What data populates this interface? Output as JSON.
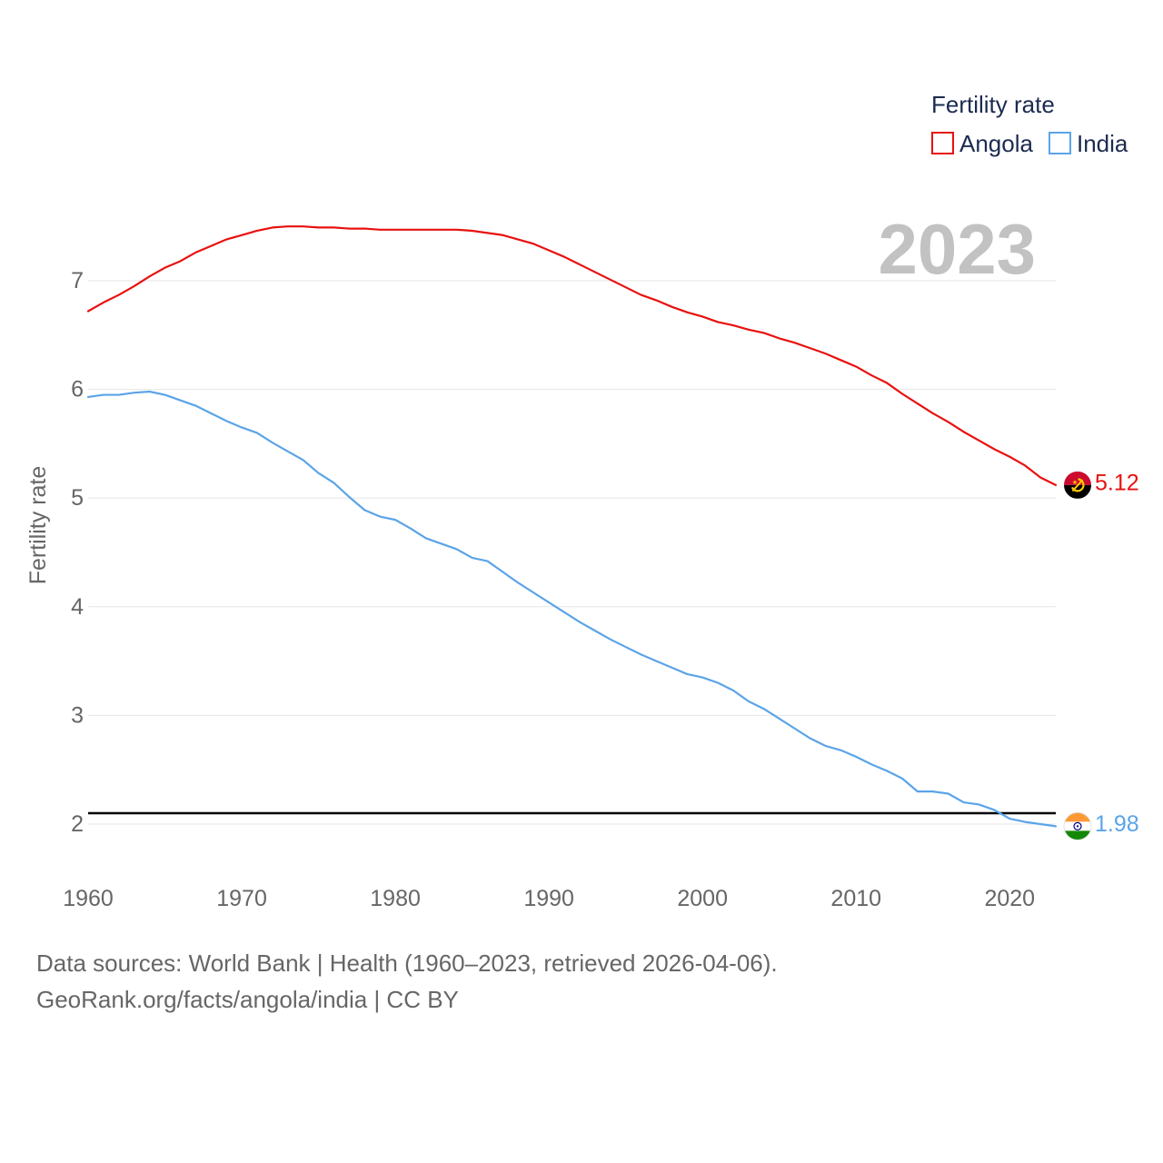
{
  "chart_data": {
    "type": "line",
    "title": "",
    "legend_title": "Fertility rate",
    "legend_position": "top-right",
    "ylabel": "Fertility rate",
    "xlabel": "",
    "year_label": "2023",
    "grid": true,
    "xlim": [
      1960,
      2023
    ],
    "ylim": [
      1.5,
      8
    ],
    "x_ticks": [
      1960,
      1970,
      1980,
      1990,
      2000,
      2010,
      2020
    ],
    "y_ticks": [
      2,
      3,
      4,
      5,
      6,
      7
    ],
    "reference_line": 2.1,
    "x": [
      1960,
      1961,
      1962,
      1963,
      1964,
      1965,
      1966,
      1967,
      1968,
      1969,
      1970,
      1971,
      1972,
      1973,
      1974,
      1975,
      1976,
      1977,
      1978,
      1979,
      1980,
      1981,
      1982,
      1983,
      1984,
      1985,
      1986,
      1987,
      1988,
      1989,
      1990,
      1991,
      1992,
      1993,
      1994,
      1995,
      1996,
      1997,
      1998,
      1999,
      2000,
      2001,
      2002,
      2003,
      2004,
      2005,
      2006,
      2007,
      2008,
      2009,
      2010,
      2011,
      2012,
      2013,
      2014,
      2015,
      2016,
      2017,
      2018,
      2019,
      2020,
      2021,
      2022,
      2023
    ],
    "series": [
      {
        "name": "Angola",
        "color": "#e8110f",
        "flag_icon": "angola-flag-icon",
        "end_label": "5.12",
        "values": [
          6.72,
          6.8,
          6.87,
          6.95,
          7.04,
          7.12,
          7.18,
          7.26,
          7.32,
          7.38,
          7.42,
          7.46,
          7.49,
          7.5,
          7.5,
          7.49,
          7.49,
          7.48,
          7.48,
          7.47,
          7.47,
          7.47,
          7.47,
          7.47,
          7.47,
          7.46,
          7.44,
          7.42,
          7.38,
          7.34,
          7.28,
          7.22,
          7.15,
          7.08,
          7.01,
          6.94,
          6.87,
          6.82,
          6.76,
          6.71,
          6.67,
          6.62,
          6.59,
          6.55,
          6.52,
          6.47,
          6.43,
          6.38,
          6.33,
          6.27,
          6.21,
          6.13,
          6.06,
          5.96,
          5.87,
          5.78,
          5.7,
          5.61,
          5.53,
          5.45,
          5.38,
          5.3,
          5.19,
          5.12
        ]
      },
      {
        "name": "India",
        "color": "#5ba4e8",
        "flag_icon": "india-flag-icon",
        "end_label": "1.98",
        "values": [
          5.93,
          5.95,
          5.95,
          5.97,
          5.98,
          5.95,
          5.9,
          5.85,
          5.78,
          5.71,
          5.65,
          5.6,
          5.51,
          5.43,
          5.35,
          5.23,
          5.14,
          5.01,
          4.89,
          4.83,
          4.8,
          4.72,
          4.63,
          4.58,
          4.53,
          4.45,
          4.42,
          4.32,
          4.22,
          4.13,
          4.04,
          3.95,
          3.86,
          3.78,
          3.7,
          3.63,
          3.56,
          3.5,
          3.44,
          3.38,
          3.35,
          3.3,
          3.23,
          3.13,
          3.06,
          2.97,
          2.88,
          2.79,
          2.72,
          2.68,
          2.62,
          2.55,
          2.49,
          2.42,
          2.3,
          2.3,
          2.28,
          2.2,
          2.18,
          2.13,
          2.05,
          2.02,
          2.0,
          1.98
        ]
      }
    ]
  },
  "footer": {
    "sources": "Data sources: World Bank | Health (1960–2023, retrieved 2026-04-06).",
    "attribution": "GeoRank.org/facts/angola/india | CC BY"
  }
}
